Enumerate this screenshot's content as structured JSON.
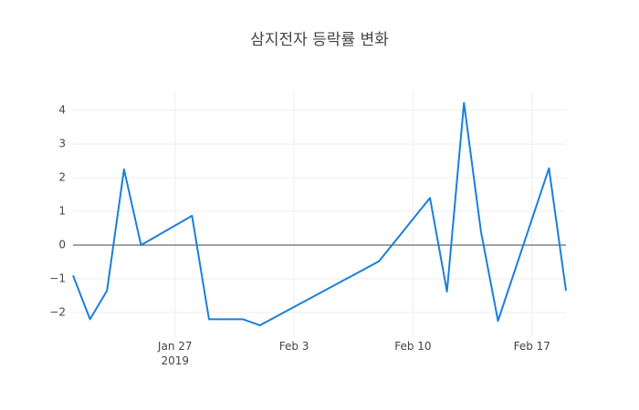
{
  "chart_data": {
    "type": "line",
    "title": "삼지전자 등락률 변화",
    "x": [
      "2019-01-21",
      "2019-01-22",
      "2019-01-23",
      "2019-01-24",
      "2019-01-25",
      "2019-01-28",
      "2019-01-29",
      "2019-01-31",
      "2019-02-01",
      "2019-02-08",
      "2019-02-11",
      "2019-02-12",
      "2019-02-13",
      "2019-02-14",
      "2019-02-15",
      "2019-02-18",
      "2019-02-19"
    ],
    "series": [
      {
        "color": "#1a7fdc",
        "values": [
          -0.9,
          -2.2,
          -1.35,
          2.25,
          0,
          0.87,
          -2.2,
          -2.2,
          -2.38,
          -0.48,
          1.4,
          -1.38,
          4.22,
          0.4,
          -2.25,
          2.28,
          -1.35
        ]
      }
    ],
    "xlim": [
      "2019-01-21",
      "2019-02-19"
    ],
    "xticks": [
      {
        "value": "2019-01-27",
        "label": "Jan 27\n2019"
      },
      {
        "value": "2019-02-03",
        "label": "Feb 3"
      },
      {
        "value": "2019-02-10",
        "label": "Feb 10"
      },
      {
        "value": "2019-02-17",
        "label": "Feb 17"
      }
    ],
    "ylim": [
      -2.73,
      4.57
    ],
    "yticks": [
      {
        "value": -2,
        "label": "−2"
      },
      {
        "value": -1,
        "label": "−1"
      },
      0,
      1,
      2,
      3,
      4
    ],
    "grid": true,
    "zeroline": true
  }
}
